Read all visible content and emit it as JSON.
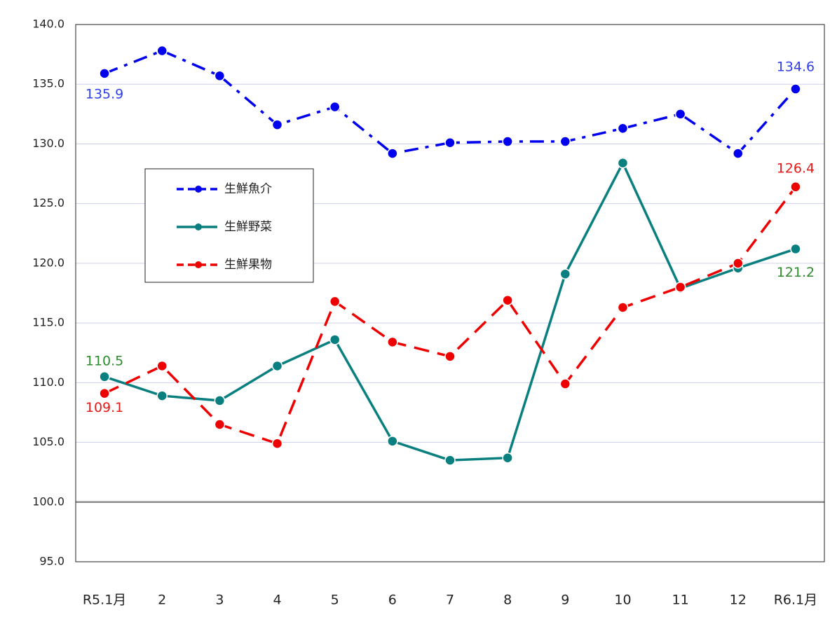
{
  "chart_data": {
    "type": "line",
    "categories": [
      "R5.1月",
      "2",
      "3",
      "4",
      "5",
      "6",
      "7",
      "8",
      "9",
      "10",
      "11",
      "12",
      "R6.1月"
    ],
    "ylim": [
      95,
      140
    ],
    "yticks": [
      {
        "value": 95,
        "label": "95.0"
      },
      {
        "value": 100,
        "label": "100.0"
      },
      {
        "value": 105,
        "label": "105.0"
      },
      {
        "value": 110,
        "label": "110.0"
      },
      {
        "value": 115,
        "label": "115.0"
      },
      {
        "value": 120,
        "label": "120.0"
      },
      {
        "value": 125,
        "label": "125.0"
      },
      {
        "value": 130,
        "label": "130.0"
      },
      {
        "value": 135,
        "label": "135.0"
      },
      {
        "value": 140,
        "label": "140.0"
      }
    ],
    "grid": true,
    "grid_color": "#cdd0ee",
    "reference_line": 100,
    "series": [
      {
        "name": "生鮮魚介",
        "color": "#0000ee",
        "dash": "dash-dot",
        "label_color": "#2f3fe8",
        "values": [
          135.9,
          137.8,
          135.7,
          131.6,
          133.1,
          129.2,
          130.1,
          130.2,
          130.2,
          131.3,
          132.5,
          129.2,
          134.6
        ],
        "value_labels": [
          "135.9",
          null,
          null,
          null,
          null,
          null,
          null,
          null,
          null,
          null,
          null,
          null,
          "134.6"
        ]
      },
      {
        "name": "生鮮野菜",
        "color": "#0a7f7f",
        "dash": "solid",
        "label_color": "#2e8b2e",
        "values": [
          110.5,
          108.9,
          108.5,
          111.4,
          113.6,
          105.1,
          103.5,
          103.7,
          119.1,
          128.4,
          117.9,
          119.6,
          121.2
        ],
        "value_labels": [
          "110.5",
          null,
          null,
          null,
          null,
          null,
          null,
          null,
          null,
          null,
          null,
          null,
          "121.2"
        ]
      },
      {
        "name": "生鮮果物",
        "color": "#ee0000",
        "dash": "dash",
        "label_color": "#e81818",
        "values": [
          109.1,
          111.4,
          106.5,
          104.9,
          116.8,
          113.4,
          112.2,
          116.9,
          109.9,
          116.3,
          118.0,
          120.0,
          126.4
        ],
        "value_labels": [
          "109.1",
          null,
          null,
          null,
          null,
          null,
          null,
          null,
          null,
          null,
          null,
          null,
          "126.4"
        ]
      }
    ]
  }
}
